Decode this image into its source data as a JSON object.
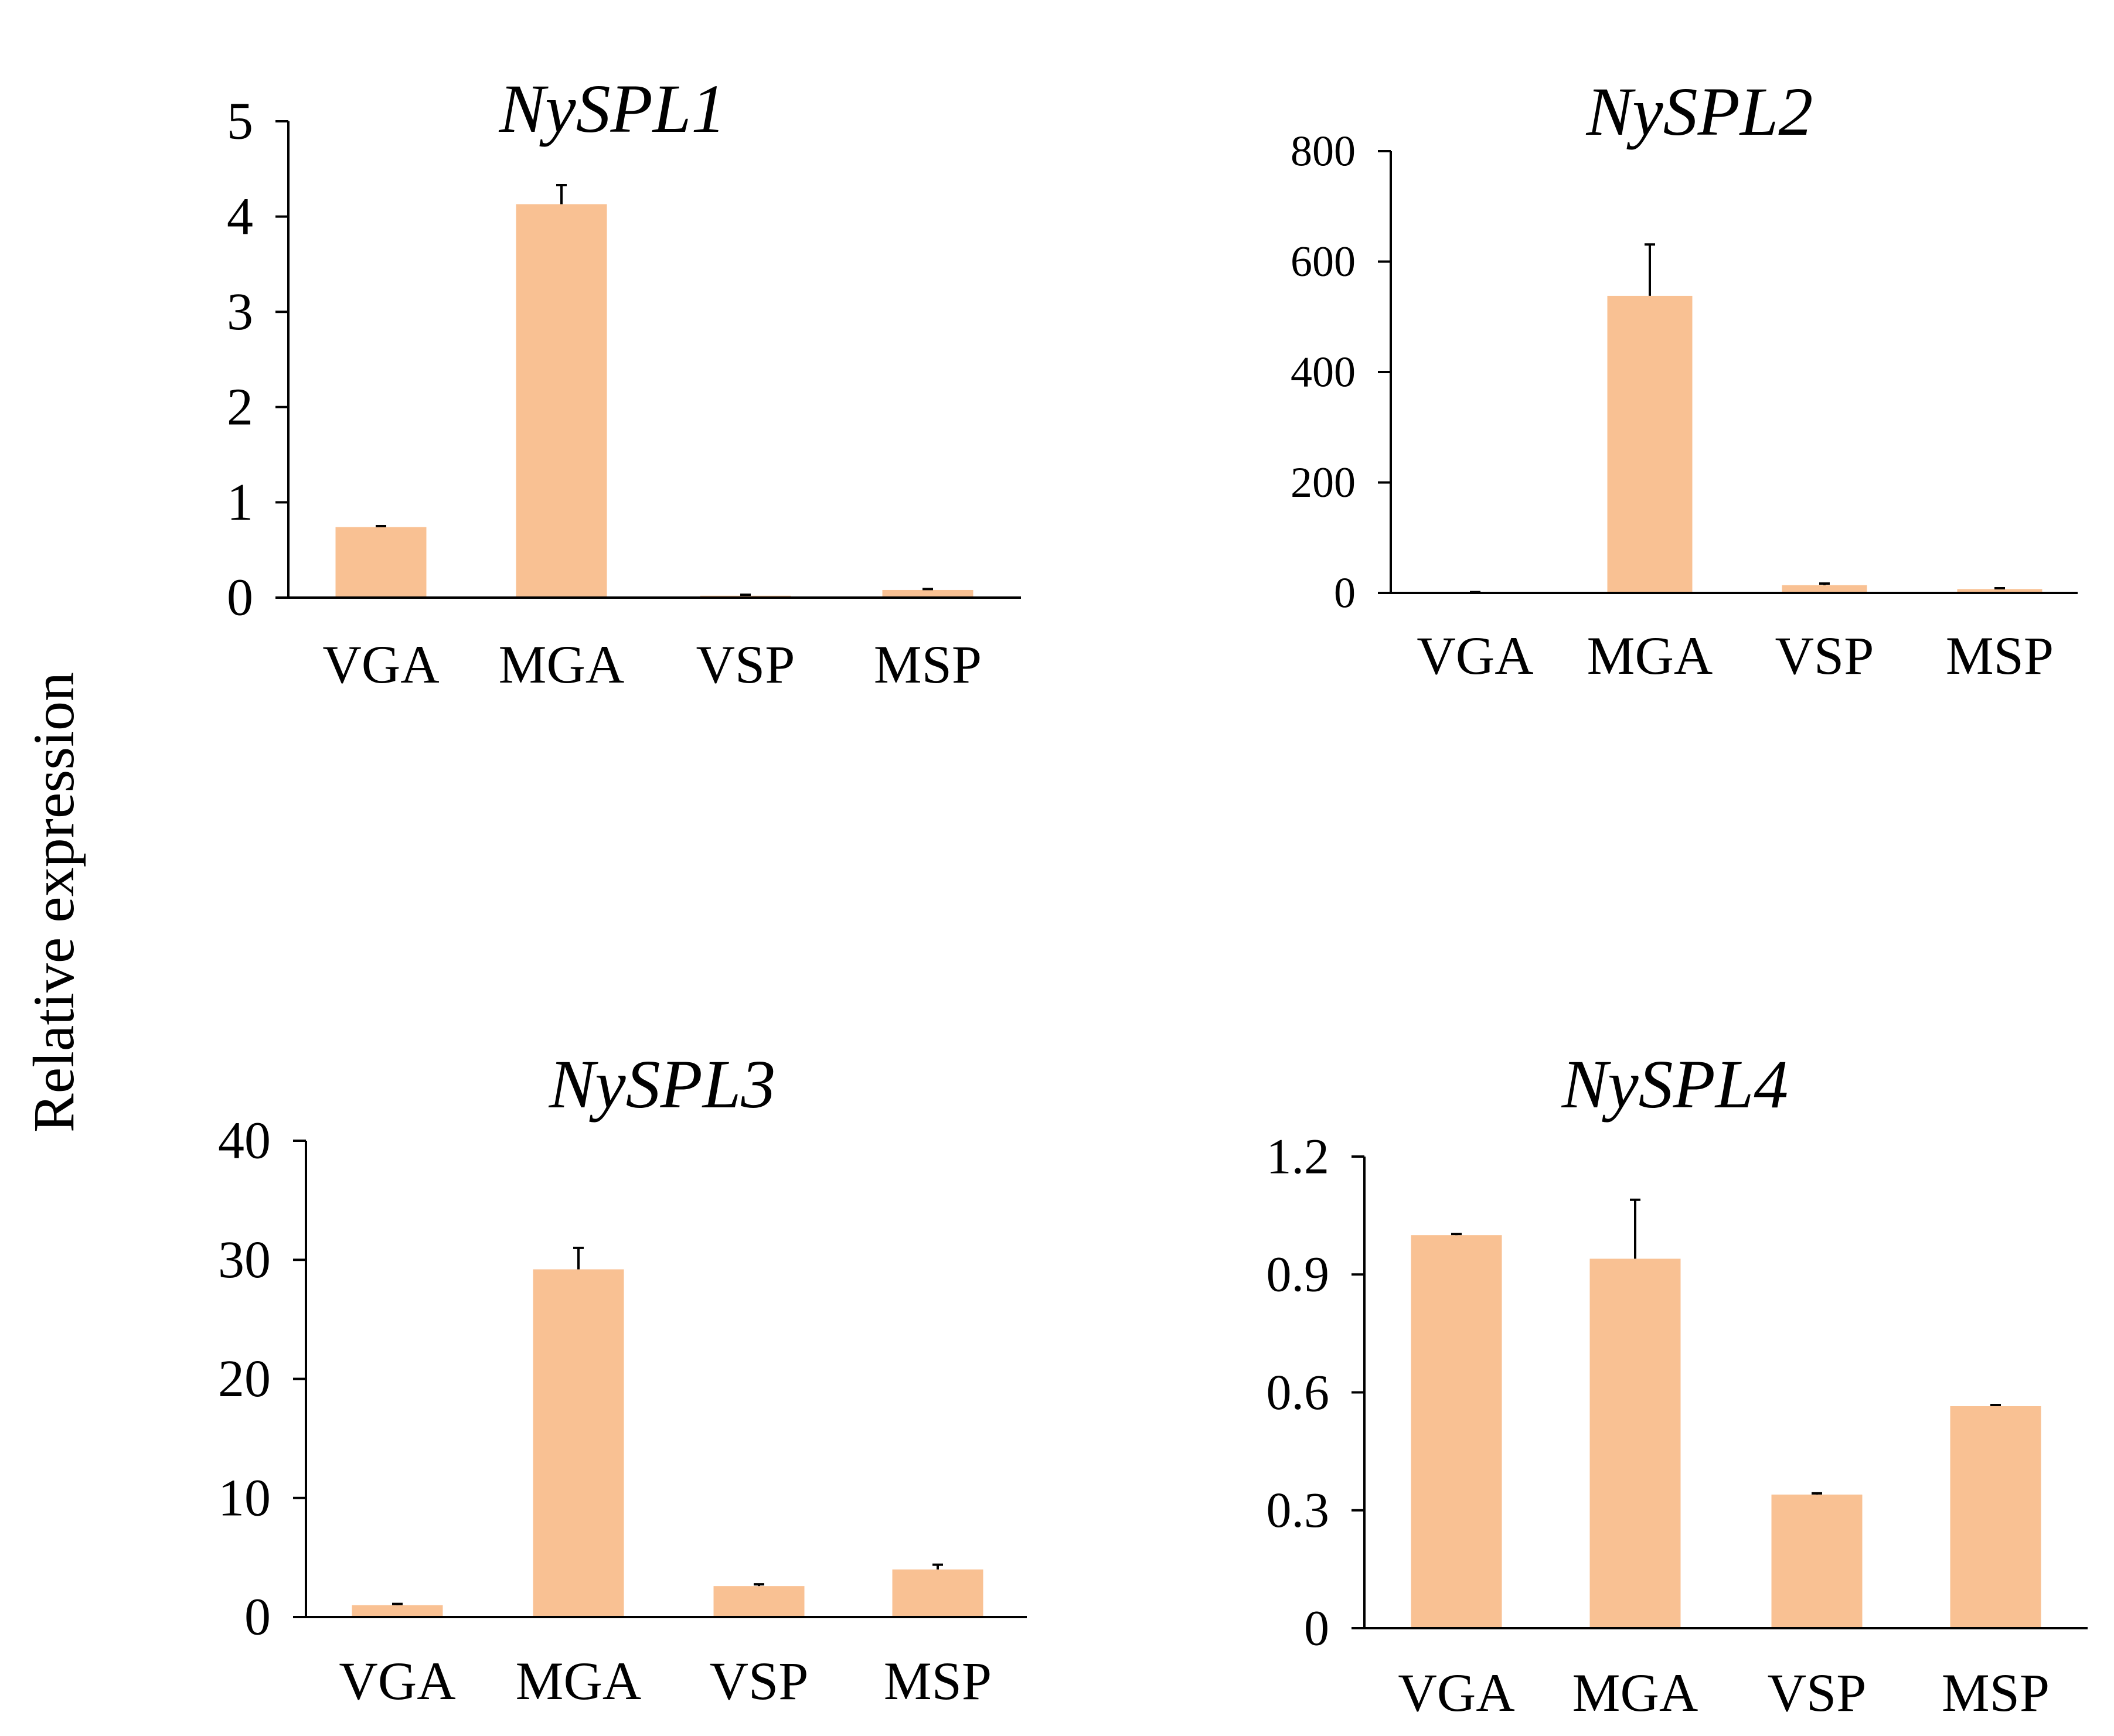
{
  "figure": {
    "shared_ylabel": "Relative expression"
  },
  "colors": {
    "bar": "#F9C193",
    "axis": "#000000",
    "background": "#FFFFFF"
  },
  "chart_data": [
    {
      "type": "bar",
      "title": "NySPL1",
      "categories": [
        "VGA",
        "MGA",
        "VSP",
        "MSP"
      ],
      "values": [
        0.74,
        4.13,
        0.02,
        0.08
      ],
      "errors": [
        0.01,
        0.2,
        0.01,
        0.01
      ],
      "ylim": [
        0,
        5
      ],
      "yticks": [
        0,
        1,
        2,
        3,
        4,
        5
      ],
      "ytick_labels": [
        "0",
        "1",
        "2",
        "3",
        "4",
        "5"
      ],
      "xlabel": "",
      "ylabel": "Relative expression"
    },
    {
      "type": "bar",
      "title": "NySPL2",
      "categories": [
        "VGA",
        "MGA",
        "VSP",
        "MSP"
      ],
      "values": [
        1,
        538,
        14,
        7
      ],
      "errors": [
        0.5,
        93,
        3,
        1.5
      ],
      "ylim": [
        0,
        800
      ],
      "yticks": [
        0,
        200,
        400,
        600,
        800
      ],
      "ytick_labels": [
        "0",
        "200",
        "400",
        "600",
        "800"
      ],
      "xlabel": "",
      "ylabel": "Relative expression"
    },
    {
      "type": "bar",
      "title": "NySPL3",
      "categories": [
        "VGA",
        "MGA",
        "VSP",
        "MSP"
      ],
      "values": [
        1.0,
        29.2,
        2.6,
        4.0
      ],
      "errors": [
        0.1,
        1.8,
        0.15,
        0.4
      ],
      "ylim": [
        0,
        40
      ],
      "yticks": [
        0,
        10,
        20,
        30,
        40
      ],
      "ytick_labels": [
        "0",
        "10",
        "20",
        "30",
        "40"
      ],
      "xlabel": "",
      "ylabel": "Relative expression"
    },
    {
      "type": "bar",
      "title": "NySPL4",
      "categories": [
        "VGA",
        "MGA",
        "VSP",
        "MSP"
      ],
      "values": [
        1.0,
        0.94,
        0.34,
        0.565
      ],
      "errors": [
        0.003,
        0.15,
        0.003,
        0.003
      ],
      "ylim": [
        0,
        1.2
      ],
      "yticks": [
        0,
        0.3,
        0.6,
        0.9,
        1.2
      ],
      "ytick_labels": [
        "0",
        "0.3",
        "0.6",
        "0.9",
        "1.2"
      ],
      "xlabel": "",
      "ylabel": "Relative expression"
    }
  ]
}
